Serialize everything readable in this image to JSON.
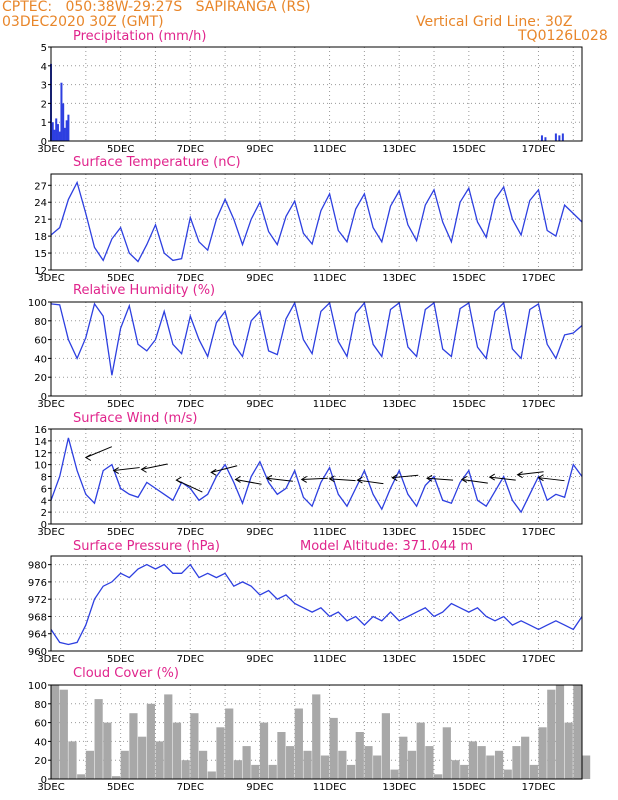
{
  "header": {
    "line1_left": "CPTEC:   050:38W-29:27S   SAPIRANGA (RS)",
    "line2_left": "03DEC2020 30Z (GMT)",
    "line1_right": "Vertical Grid Line: 30Z",
    "line2_right": "TQ0126L028"
  },
  "colors": {
    "header": "#e8862a",
    "titles": "#e0248c",
    "lines": "#2d3fe0",
    "cloud": "#a8a8a8"
  },
  "x_axis": {
    "tick_labels": [
      "3DEC",
      "5DEC",
      "7DEC",
      "9DEC",
      "11DEC",
      "13DEC",
      "15DEC",
      "17DEC"
    ],
    "tick_days": [
      0,
      2,
      4,
      6,
      8,
      10,
      12,
      14
    ],
    "range_days": [
      0,
      15.25
    ]
  },
  "chart_data": [
    {
      "id": "precip",
      "type": "bar",
      "title": "Precipitation (mm/h)",
      "ylim": [
        0,
        5
      ],
      "yticks": [
        0,
        1,
        2,
        3,
        4,
        5
      ],
      "x": [
        0.0,
        0.05,
        0.1,
        0.15,
        0.2,
        0.25,
        0.3,
        0.35,
        0.4,
        0.45,
        0.5,
        14.1,
        14.2,
        14.5,
        14.6,
        14.7
      ],
      "values": [
        4.1,
        1.0,
        0.6,
        1.2,
        0.9,
        0.5,
        3.1,
        2.0,
        0.7,
        1.1,
        1.4,
        0.3,
        0.2,
        0.4,
        0.3,
        0.4
      ]
    },
    {
      "id": "temp",
      "type": "line",
      "title": "Surface Temperature (nC)",
      "ylim": [
        12,
        29
      ],
      "yticks": [
        12,
        15,
        18,
        21,
        24,
        27
      ],
      "x": [
        0,
        0.25,
        0.5,
        0.75,
        1,
        1.25,
        1.5,
        1.75,
        2,
        2.25,
        2.5,
        2.75,
        3,
        3.25,
        3.5,
        3.75,
        4,
        4.25,
        4.5,
        4.75,
        5,
        5.25,
        5.5,
        5.75,
        6,
        6.25,
        6.5,
        6.75,
        7,
        7.25,
        7.5,
        7.75,
        8,
        8.25,
        8.5,
        8.75,
        9,
        9.25,
        9.5,
        9.75,
        10,
        10.25,
        10.5,
        10.75,
        11,
        11.25,
        11.5,
        11.75,
        12,
        12.25,
        12.5,
        12.75,
        13,
        13.25,
        13.5,
        13.75,
        14,
        14.25,
        14.5,
        14.75,
        15,
        15.25
      ],
      "values": [
        18.2,
        19.5,
        24.5,
        27.5,
        22,
        16,
        13.7,
        17.5,
        19.5,
        15,
        13.5,
        16.5,
        20,
        15,
        13.7,
        14,
        21.3,
        17,
        15.5,
        21,
        24.5,
        21,
        16.5,
        21,
        24,
        18.8,
        16.5,
        21.5,
        24.2,
        18.5,
        16.6,
        22.5,
        25.5,
        19,
        17,
        22.8,
        25.5,
        19.5,
        17,
        23.3,
        26,
        20,
        17.2,
        23.5,
        26.2,
        20.5,
        17,
        24,
        26.5,
        20.5,
        17.8,
        24.5,
        26.7,
        21,
        18.2,
        24.3,
        26.2,
        19,
        18,
        23.5,
        22,
        20.5
      ]
    },
    {
      "id": "rh",
      "type": "line",
      "title": "Relative Humidity (%)",
      "ylim": [
        0,
        100
      ],
      "yticks": [
        0,
        20,
        40,
        60,
        80,
        100
      ],
      "x": [
        0,
        0.25,
        0.5,
        0.75,
        1,
        1.25,
        1.5,
        1.75,
        2,
        2.25,
        2.5,
        2.75,
        3,
        3.25,
        3.5,
        3.75,
        4,
        4.25,
        4.5,
        4.75,
        5,
        5.25,
        5.5,
        5.75,
        6,
        6.25,
        6.5,
        6.75,
        7,
        7.25,
        7.5,
        7.75,
        8,
        8.25,
        8.5,
        8.75,
        9,
        9.25,
        9.5,
        9.75,
        10,
        10.25,
        10.5,
        10.75,
        11,
        11.25,
        11.5,
        11.75,
        12,
        12.25,
        12.5,
        12.75,
        13,
        13.25,
        13.5,
        13.75,
        14,
        14.25,
        14.5,
        14.75,
        15,
        15.25
      ],
      "values": [
        98,
        97,
        60,
        40,
        62,
        98,
        85,
        22,
        72,
        96,
        55,
        48,
        60,
        90,
        55,
        45,
        85,
        60,
        42,
        78,
        90,
        55,
        42,
        80,
        90,
        48,
        44,
        82,
        99,
        60,
        45,
        90,
        99,
        58,
        42,
        88,
        99,
        55,
        42,
        92,
        99,
        52,
        42,
        92,
        99,
        50,
        42,
        93,
        99,
        52,
        40,
        90,
        99,
        50,
        40,
        92,
        98,
        55,
        40,
        65,
        67,
        75
      ]
    },
    {
      "id": "wind",
      "type": "line",
      "title": "Surface Wind (m/s)",
      "ylim": [
        0,
        16
      ],
      "yticks": [
        0,
        2,
        4,
        6,
        8,
        10,
        12,
        14,
        16
      ],
      "x": [
        0,
        0.25,
        0.5,
        0.75,
        1,
        1.25,
        1.5,
        1.75,
        2,
        2.25,
        2.5,
        2.75,
        3,
        3.25,
        3.5,
        3.75,
        4,
        4.25,
        4.5,
        4.75,
        5,
        5.25,
        5.5,
        5.75,
        6,
        6.25,
        6.5,
        6.75,
        7,
        7.25,
        7.5,
        7.75,
        8,
        8.25,
        8.5,
        8.75,
        9,
        9.25,
        9.5,
        9.75,
        10,
        10.25,
        10.5,
        10.75,
        11,
        11.25,
        11.5,
        11.75,
        12,
        12.25,
        12.5,
        12.75,
        13,
        13.25,
        13.5,
        13.75,
        14,
        14.25,
        14.5,
        14.75,
        15,
        15.25
      ],
      "values": [
        4,
        8,
        14.5,
        9,
        5,
        3.5,
        9,
        10,
        6,
        5,
        4.5,
        7,
        6,
        5,
        4,
        7,
        6,
        4,
        5,
        8,
        10,
        7,
        3.5,
        8,
        10.5,
        7,
        5,
        6,
        9,
        4.5,
        3,
        7,
        9.5,
        5,
        3,
        6,
        9,
        5,
        2.5,
        6,
        9,
        5,
        3,
        6.5,
        8,
        4,
        3.5,
        7,
        9,
        4,
        3,
        5.5,
        8,
        4,
        2,
        5,
        8,
        4,
        5,
        4.5,
        10,
        8
      ]
    },
    {
      "id": "pressure",
      "type": "line",
      "title": "Surface Pressure (hPa)",
      "ylim": [
        960,
        982
      ],
      "yticks": [
        960,
        964,
        968,
        972,
        976,
        980
      ],
      "x": [
        0,
        0.25,
        0.5,
        0.75,
        1,
        1.25,
        1.5,
        1.75,
        2,
        2.25,
        2.5,
        2.75,
        3,
        3.25,
        3.5,
        3.75,
        4,
        4.25,
        4.5,
        4.75,
        5,
        5.25,
        5.5,
        5.75,
        6,
        6.25,
        6.5,
        6.75,
        7,
        7.25,
        7.5,
        7.75,
        8,
        8.25,
        8.5,
        8.75,
        9,
        9.25,
        9.5,
        9.75,
        10,
        10.25,
        10.5,
        10.75,
        11,
        11.25,
        11.5,
        11.75,
        12,
        12.25,
        12.5,
        12.75,
        13,
        13.25,
        13.5,
        13.75,
        14,
        14.25,
        14.5,
        14.75,
        15,
        15.25
      ],
      "values": [
        965,
        962,
        961.5,
        962,
        966,
        972,
        975,
        976,
        978,
        977,
        979,
        980,
        979,
        980,
        978,
        978,
        980,
        977,
        978,
        977,
        978,
        975,
        976,
        975,
        973,
        974,
        972,
        973,
        971,
        970,
        969,
        970,
        968,
        969,
        967,
        968,
        966,
        968,
        967,
        969,
        967,
        968,
        969,
        970,
        968,
        969,
        971,
        970,
        969,
        970,
        968,
        967,
        968,
        966,
        967,
        966,
        965,
        966,
        967,
        966,
        965,
        968
      ]
    },
    {
      "id": "cloud",
      "type": "area",
      "title": "Cloud Cover (%)",
      "ylim": [
        0,
        100
      ],
      "yticks": [
        0,
        20,
        40,
        60,
        80,
        100
      ],
      "x": [
        0,
        0.25,
        0.5,
        0.75,
        1,
        1.25,
        1.5,
        1.75,
        2,
        2.25,
        2.5,
        2.75,
        3,
        3.25,
        3.5,
        3.75,
        4,
        4.25,
        4.5,
        4.75,
        5,
        5.25,
        5.5,
        5.75,
        6,
        6.25,
        6.5,
        6.75,
        7,
        7.25,
        7.5,
        7.75,
        8,
        8.25,
        8.5,
        8.75,
        9,
        9.25,
        9.5,
        9.75,
        10,
        10.25,
        10.5,
        10.75,
        11,
        11.25,
        11.5,
        11.75,
        12,
        12.25,
        12.5,
        12.75,
        13,
        13.25,
        13.5,
        13.75,
        14,
        14.25,
        14.5,
        14.75,
        15,
        15.25
      ],
      "values": [
        100,
        95,
        40,
        5,
        30,
        85,
        60,
        3,
        30,
        70,
        45,
        80,
        40,
        90,
        60,
        20,
        70,
        30,
        8,
        55,
        75,
        20,
        35,
        15,
        60,
        15,
        50,
        35,
        75,
        30,
        90,
        25,
        65,
        30,
        15,
        50,
        35,
        25,
        70,
        10,
        45,
        30,
        60,
        35,
        5,
        55,
        20,
        15,
        40,
        35,
        25,
        30,
        10,
        35,
        45,
        15,
        55,
        95,
        100,
        60,
        100,
        25
      ]
    }
  ],
  "wind_panel": {
    "vector_label": "wind direction arrows"
  },
  "pressure_panel": {
    "model_altitude": "Model Altitude: 371.044 m"
  }
}
